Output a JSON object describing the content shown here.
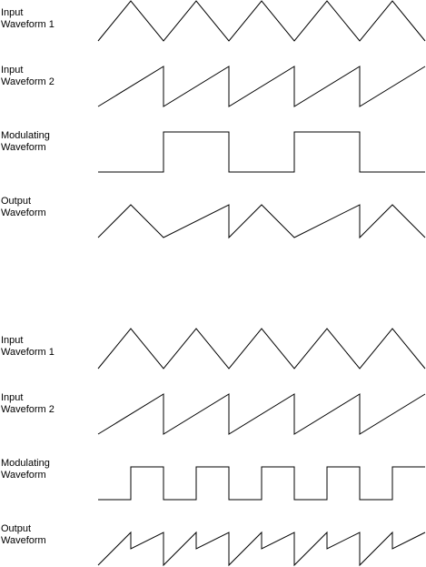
{
  "stroke_color": "#000000",
  "panels": [
    {
      "rows": [
        {
          "label": [
            "Input",
            "Waveform 1"
          ],
          "wave": "triangle"
        },
        {
          "label": [
            "Input",
            "Waveform 2"
          ],
          "wave": "sawtooth"
        },
        {
          "label": [
            "Modulating",
            "Waveform"
          ],
          "wave": "square-slow"
        },
        {
          "label": [
            "Output",
            "Waveform"
          ],
          "wave": "output-slow"
        }
      ]
    },
    {
      "rows": [
        {
          "label": [
            "Input",
            "Waveform 1"
          ],
          "wave": "triangle"
        },
        {
          "label": [
            "Input",
            "Waveform 2"
          ],
          "wave": "sawtooth"
        },
        {
          "label": [
            "Modulating",
            "Waveform"
          ],
          "wave": "square-fast"
        },
        {
          "label": [
            "Output",
            "Waveform"
          ],
          "wave": "output-fast"
        }
      ]
    }
  ]
}
